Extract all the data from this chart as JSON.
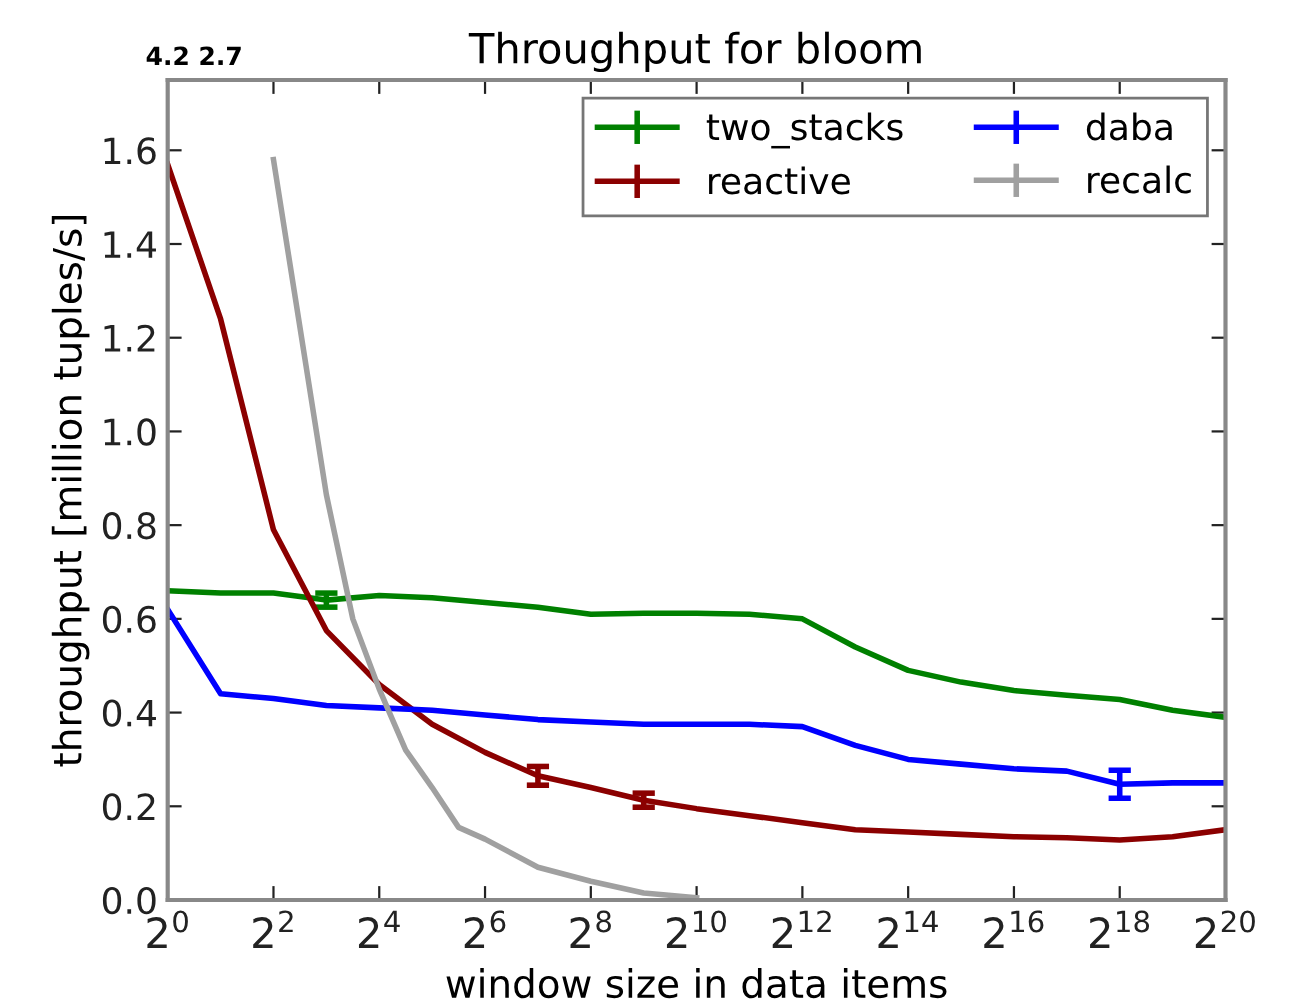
{
  "chart_data": {
    "type": "line",
    "title": "Throughput for bloom",
    "xlabel": "window size in data items",
    "ylabel": "throughput [million tuples/s]",
    "log": "x",
    "xlim": [
      1,
      1048576
    ],
    "ylim": [
      0,
      1.75
    ],
    "xticks": [
      {
        "value": 1,
        "label": "2$^{0}$"
      },
      {
        "value": 4,
        "label": "2$^{2}$"
      },
      {
        "value": 16,
        "label": "2$^{4}$"
      },
      {
        "value": 64,
        "label": "2$^{6}$"
      },
      {
        "value": 256,
        "label": "2$^{8}$"
      },
      {
        "value": 1024,
        "label": "2$^{10}$"
      },
      {
        "value": 4096,
        "label": "2$^{12}$"
      },
      {
        "value": 16384,
        "label": "2$^{14}$"
      },
      {
        "value": 65536,
        "label": "2$^{16}$"
      },
      {
        "value": 262144,
        "label": "2$^{18}$"
      },
      {
        "value": 1048576,
        "label": "2$^{20}$"
      }
    ],
    "yticks": [
      {
        "value": 0,
        "label": "0.0"
      },
      {
        "value": 0.2,
        "label": "0.2"
      },
      {
        "value": 0.4,
        "label": "0.4"
      },
      {
        "value": 0.6,
        "label": "0.6"
      },
      {
        "value": 0.8,
        "label": "0.8"
      },
      {
        "value": 1.0,
        "label": "1.0"
      },
      {
        "value": 1.2,
        "label": "1.2"
      },
      {
        "value": 1.4,
        "label": "1.4"
      },
      {
        "value": 1.6,
        "label": "1.6"
      }
    ],
    "grid": false,
    "annotations": [
      "4.2",
      "2.7"
    ],
    "legend": "top right",
    "marker": "none",
    "line_style": "solid",
    "series": [
      {
        "name": "two_stacks",
        "color": "#008000",
        "x": [
          1,
          2,
          4,
          8,
          16,
          32,
          64,
          128,
          256,
          512,
          1024,
          2048,
          4096,
          8192,
          16384,
          32768,
          65536,
          131072,
          262144,
          524288,
          1048576
        ],
        "values": [
          0.66,
          0.655,
          0.655,
          0.64,
          0.65,
          0.645,
          0.635,
          0.625,
          0.61,
          0.612,
          0.612,
          0.61,
          0.6,
          0.54,
          0.49,
          0.465,
          0.447,
          0.437,
          0.428,
          0.405,
          0.39
        ],
        "errors": [
          null,
          null,
          null,
          0.015,
          null,
          null,
          null,
          null,
          null,
          null,
          null,
          null,
          null,
          null,
          null,
          null,
          null,
          null,
          null,
          null,
          null
        ]
      },
      {
        "name": "reactive",
        "color": "#8b0000",
        "x": [
          1,
          2,
          4,
          8,
          16,
          32,
          64,
          128,
          256,
          512,
          1024,
          2048,
          4096,
          8192,
          16384,
          32768,
          65536,
          131072,
          262144,
          524288,
          1048576
        ],
        "values": [
          1.57,
          1.24,
          0.79,
          0.575,
          0.46,
          0.375,
          0.315,
          0.265,
          0.24,
          0.213,
          0.195,
          0.18,
          0.165,
          0.15,
          0.145,
          0.14,
          0.135,
          0.133,
          0.128,
          0.135,
          0.15
        ],
        "errors": [
          null,
          null,
          null,
          null,
          null,
          null,
          null,
          0.02,
          null,
          0.015,
          null,
          null,
          null,
          null,
          null,
          null,
          null,
          null,
          null,
          null,
          null
        ]
      },
      {
        "name": "daba",
        "color": "#0000ff",
        "x": [
          1,
          2,
          4,
          8,
          16,
          32,
          64,
          128,
          256,
          512,
          1024,
          2048,
          4096,
          8192,
          16384,
          32768,
          65536,
          131072,
          262144,
          524288,
          1048576
        ],
        "values": [
          0.62,
          0.44,
          0.43,
          0.415,
          0.41,
          0.405,
          0.395,
          0.385,
          0.38,
          0.375,
          0.375,
          0.375,
          0.37,
          0.33,
          0.3,
          0.29,
          0.28,
          0.275,
          0.247,
          0.25,
          0.25
        ],
        "errors": [
          null,
          null,
          null,
          null,
          null,
          null,
          null,
          null,
          null,
          null,
          null,
          null,
          null,
          null,
          null,
          null,
          null,
          null,
          0.03,
          null,
          null
        ]
      },
      {
        "name": "recalc",
        "color": "#a0a0a0",
        "x": [
          4,
          8,
          11.3137,
          16,
          22.6274,
          32,
          45.2548,
          64,
          128,
          256,
          512,
          1024
        ],
        "values": [
          1.58,
          0.865,
          0.6,
          0.45,
          0.32,
          0.24,
          0.155,
          0.13,
          0.07,
          0.04,
          0.015,
          0.005
        ]
      }
    ]
  }
}
